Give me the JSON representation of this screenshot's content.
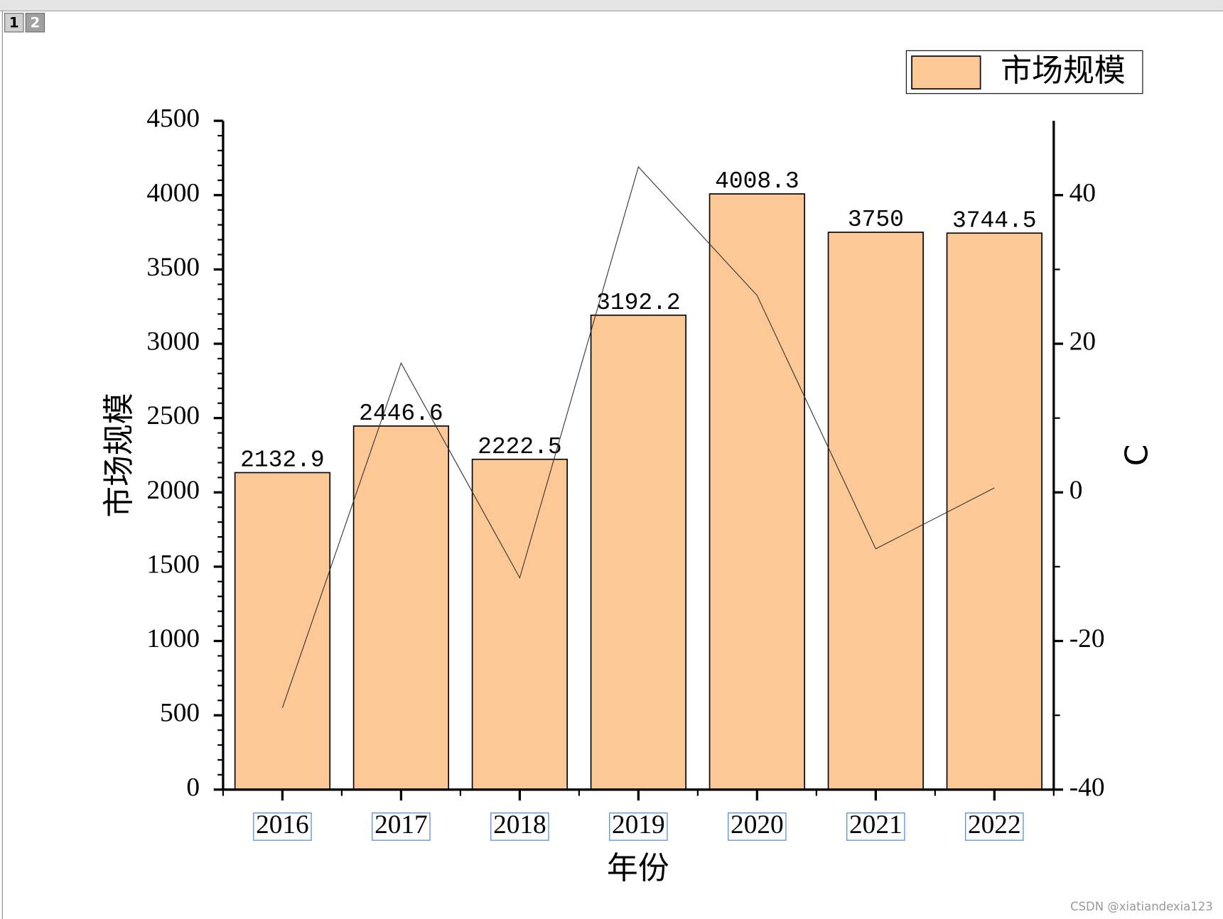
{
  "tabs": [
    "1",
    "2"
  ],
  "watermark": "CSDN @xiatiandexia123",
  "chart_data": {
    "type": "bar",
    "xlabel": "年份",
    "ylabel": "市场规模",
    "y2label": "C",
    "categories": [
      "2016",
      "2017",
      "2018",
      "2019",
      "2020",
      "2021",
      "2022"
    ],
    "series": [
      {
        "name": "市场规模",
        "type": "bar",
        "color": "#fbc896",
        "values": [
          2132.9,
          2446.6,
          2222.5,
          3192.2,
          4008.3,
          3750,
          3744.5
        ]
      },
      {
        "type": "line",
        "axis": "y2",
        "color": "#333333",
        "values": [
          -29.0,
          17.4,
          -11.5,
          43.8,
          26.5,
          -7.6,
          0.6
        ]
      }
    ],
    "ylim": [
      0,
      4500
    ],
    "yticks": [
      0,
      500,
      1000,
      1500,
      2000,
      2500,
      3000,
      3500,
      4000,
      4500
    ],
    "y2lim": [
      -40,
      50
    ],
    "y2ticks": [
      -40,
      -20,
      0,
      20,
      40
    ],
    "legend": "top-right"
  }
}
